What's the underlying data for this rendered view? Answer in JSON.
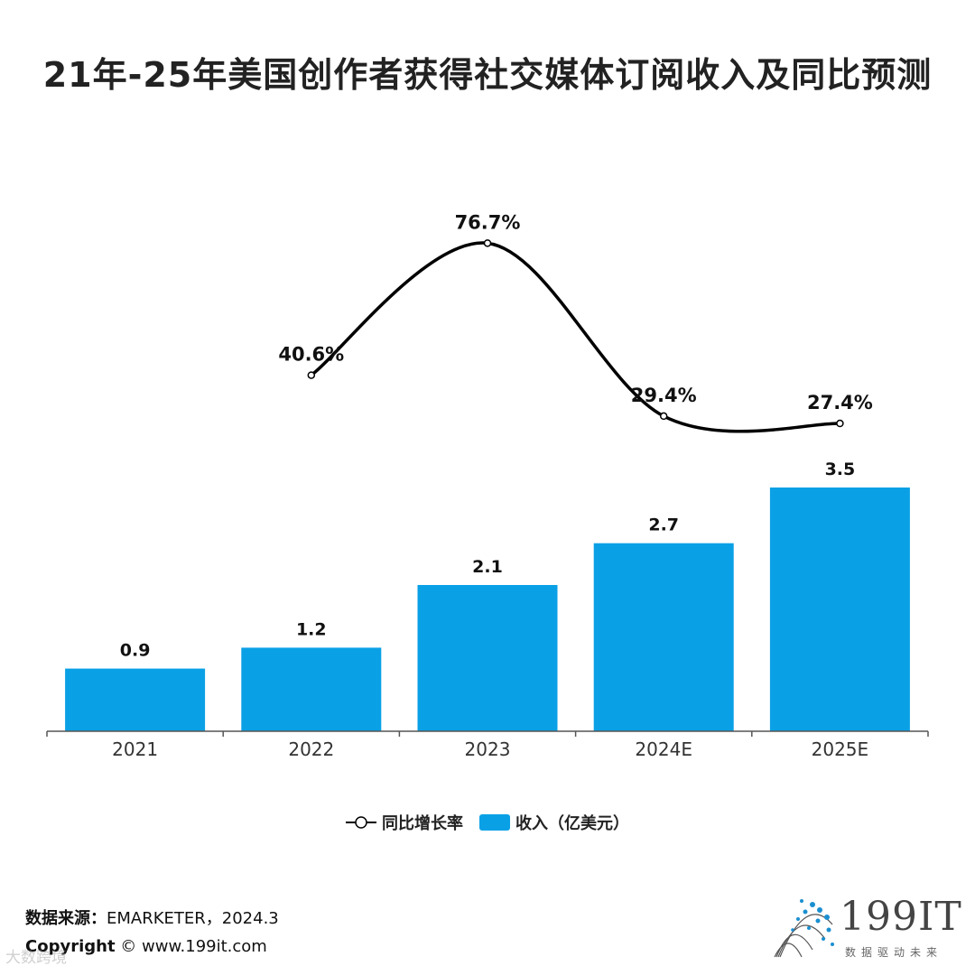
{
  "title": "21年-25年美国创作者获得社交媒体订阅收入及同比预测",
  "chart_data": {
    "type": "bar",
    "categories": [
      "2021",
      "2022",
      "2023",
      "2024E",
      "2025E"
    ],
    "series": [
      {
        "name": "收入（亿美元）",
        "type": "bar",
        "values": [
          0.9,
          1.2,
          2.1,
          2.7,
          3.5
        ],
        "labels": [
          "0.9",
          "1.2",
          "2.1",
          "2.7",
          "3.5"
        ],
        "color": "#0AA0E6"
      },
      {
        "name": "同比增长率",
        "type": "line",
        "values": [
          null,
          40.6,
          76.7,
          29.4,
          27.4
        ],
        "labels": [
          null,
          "40.6%",
          "76.7%",
          "29.4%",
          "27.4%"
        ],
        "color": "#000000"
      }
    ],
    "bar_ylim": [
      0,
      3.5
    ],
    "line_ylim": [
      0,
      90
    ]
  },
  "legend": {
    "line_label": "同比增长率",
    "bar_label": "收入（亿美元）"
  },
  "footer": {
    "source_label": "数据来源：",
    "source_value": "EMARKETER，2024.3",
    "copyright_label": "Copyright",
    "copyright_value": "©  www.199it.com",
    "watermark": "大数跨境"
  },
  "logo": {
    "brand": "199IT",
    "slogan": "数据驱动未来"
  },
  "colors": {
    "bar": "#0AA0E6",
    "line": "#000000",
    "axis": "#555555"
  }
}
